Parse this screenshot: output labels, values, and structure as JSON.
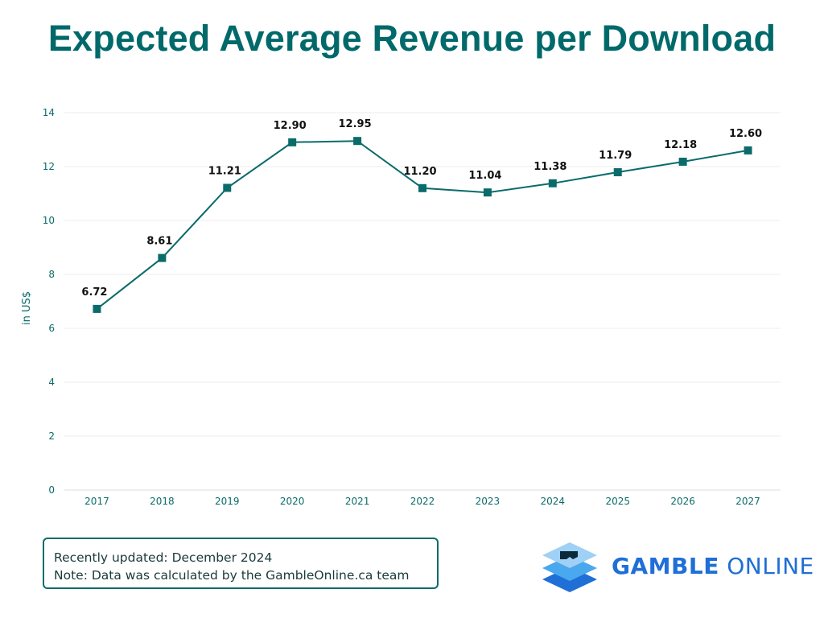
{
  "title": "Expected Average Revenue per Download",
  "chart_data": {
    "type": "line",
    "title": "Expected Average Revenue per Download",
    "xlabel": "",
    "ylabel": "in US$",
    "categories": [
      "2017",
      "2018",
      "2019",
      "2020",
      "2021",
      "2022",
      "2023",
      "2024",
      "2025",
      "2026",
      "2027"
    ],
    "series": [
      {
        "name": "Average Revenue per Download",
        "values": [
          6.72,
          8.61,
          11.21,
          12.9,
          12.95,
          11.2,
          11.04,
          11.38,
          11.79,
          12.18,
          12.6
        ],
        "labels": [
          "6.72",
          "8.61",
          "11.21",
          "12.90",
          "12.95",
          "11.20",
          "11.04",
          "11.38",
          "11.79",
          "12.18",
          "12.60"
        ]
      }
    ],
    "ylim": [
      0,
      14
    ],
    "yticks": [
      "0",
      "2",
      "4",
      "6",
      "8",
      "10",
      "12",
      "14"
    ],
    "grid": true,
    "legend": "none",
    "colors": {
      "line": "#0b6b6b",
      "marker": "#0b6b6b",
      "axis_text": "#0b6b6b",
      "grid": "#eeeeee"
    }
  },
  "notes": {
    "updated": "Recently updated: December 2024",
    "source": "Note: Data was calculated by the GambleOnline.ca team"
  },
  "logo": {
    "word1": "GAMBLE",
    "word2": "ONLINE",
    "icon": "stacked-layers-logo-icon",
    "colors": {
      "text": "#1f6fd6",
      "top": "#9fd0f5",
      "mid": "#4aa8ee",
      "bottom": "#1f6fd6",
      "mark": "#0a2a3a"
    }
  }
}
